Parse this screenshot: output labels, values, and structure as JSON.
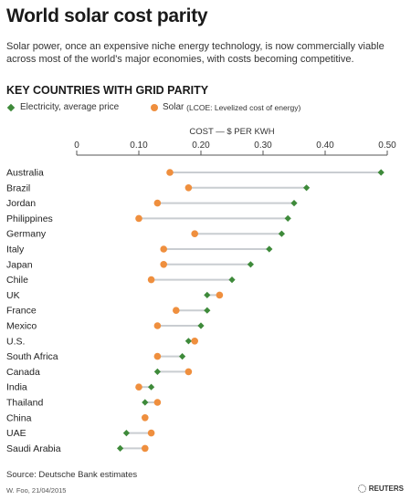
{
  "title": "World solar cost parity",
  "subtitle": "Solar power, once an expensive niche energy technology, is now commercially viable across most of the world's major economies, with costs becoming competitive.",
  "section_title": "KEY COUNTRIES WITH GRID PARITY",
  "legend": {
    "electricity_label": "Electricity, average price",
    "solar_label": "Solar",
    "solar_note": "(LCOE: Levelized cost of energy)"
  },
  "colors": {
    "electricity": "#3e8a3a",
    "solar": "#ef8f3e",
    "connector": "#c9cdd1",
    "axis": "#555555"
  },
  "footer": {
    "source": "Source: Deutsche Bank estimates",
    "byline": "W. Foo, 21/04/2015",
    "logo": "REUTERS"
  },
  "chart_data": {
    "type": "dot-plot",
    "xlabel": "COST — $ PER KWH",
    "xlim": [
      0,
      0.5
    ],
    "ticks": [
      0,
      0.1,
      0.2,
      0.3,
      0.4,
      0.5
    ],
    "tick_labels": [
      "0",
      "0.10",
      "0.20",
      "0.30",
      "0.40",
      "0.50"
    ],
    "categories": [
      "Australia",
      "Brazil",
      "Jordan",
      "Philippines",
      "Germany",
      "Italy",
      "Japan",
      "Chile",
      "UK",
      "France",
      "Mexico",
      "U.S.",
      "South Africa",
      "Canada",
      "India",
      "Thailand",
      "China",
      "UAE",
      "Saudi Arabia"
    ],
    "series": [
      {
        "name": "Electricity, average price",
        "marker": "diamond",
        "values": [
          0.49,
          0.37,
          0.35,
          0.34,
          0.33,
          0.31,
          0.28,
          0.25,
          0.21,
          0.21,
          0.2,
          0.18,
          0.17,
          0.13,
          0.12,
          0.11,
          0.11,
          0.08,
          0.07
        ]
      },
      {
        "name": "Solar",
        "marker": "circle",
        "values": [
          0.15,
          0.18,
          0.13,
          0.1,
          0.19,
          0.14,
          0.14,
          0.12,
          0.23,
          0.16,
          0.13,
          0.19,
          0.13,
          0.18,
          0.1,
          0.13,
          0.11,
          0.12,
          0.11
        ]
      }
    ]
  }
}
